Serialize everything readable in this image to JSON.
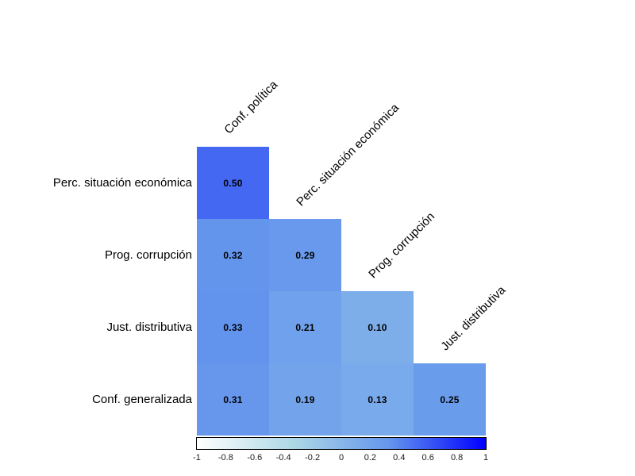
{
  "chart_data": {
    "type": "heatmap",
    "subtype": "correlation-matrix-lower-triangle",
    "title": "",
    "variables": [
      "Conf. política",
      "Perc. situación económica",
      "Prog. corrupción",
      "Just. distributiva",
      "Conf. generalizada"
    ],
    "col_labels": [
      "Conf. política",
      "Perc. situación económica",
      "Prog. corrupción",
      "Just. distributiva"
    ],
    "row_labels": [
      "Perc. situación económica",
      "Prog. corrupción",
      "Just. distributiva",
      "Conf. generalizada"
    ],
    "cells": [
      {
        "row": 0,
        "col": 0,
        "value": 0.5,
        "label": "0.50",
        "color": "#4468F1"
      },
      {
        "row": 1,
        "col": 0,
        "value": 0.32,
        "label": "0.32",
        "color": "#6495ED"
      },
      {
        "row": 1,
        "col": 1,
        "value": 0.29,
        "label": "0.29",
        "color": "#6899EC"
      },
      {
        "row": 2,
        "col": 0,
        "value": 0.33,
        "label": "0.33",
        "color": "#6394ED"
      },
      {
        "row": 2,
        "col": 1,
        "value": 0.21,
        "label": "0.21",
        "color": "#70A1EC"
      },
      {
        "row": 2,
        "col": 2,
        "value": 0.1,
        "label": "0.10",
        "color": "#7DAEEA"
      },
      {
        "row": 3,
        "col": 0,
        "value": 0.31,
        "label": "0.31",
        "color": "#6697EC"
      },
      {
        "row": 3,
        "col": 1,
        "value": 0.19,
        "label": "0.19",
        "color": "#73A4EB"
      },
      {
        "row": 3,
        "col": 2,
        "value": 0.13,
        "label": "0.13",
        "color": "#79AAEB"
      },
      {
        "row": 3,
        "col": 3,
        "value": 0.25,
        "label": "0.25",
        "color": "#6A9CEC"
      }
    ],
    "colorbar": {
      "min": -1,
      "max": 1,
      "ticks": [
        "-1",
        "-0.8",
        "-0.6",
        "-0.4",
        "-0.2",
        "0",
        "0.2",
        "0.4",
        "0.6",
        "0.8",
        "1"
      ],
      "gradient_stops": [
        "#FFFFFF",
        "#ADD8E6",
        "#6495ED",
        "#0000FF"
      ]
    },
    "value_text_color": "#000000",
    "label_text_color": "#000000",
    "background_color": "#FFFFFF",
    "legend_position": "bottom",
    "grid": false
  }
}
